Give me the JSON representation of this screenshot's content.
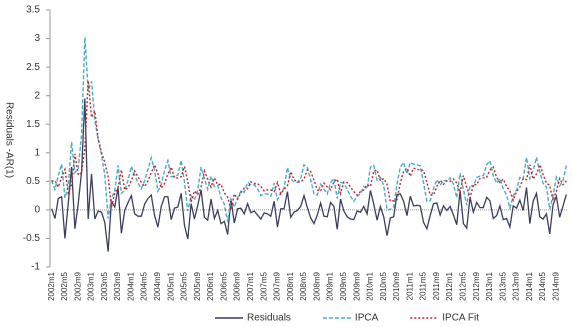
{
  "chart_data": {
    "type": "line",
    "y_label": "Residuals -AR(1)",
    "ylim": [
      -1,
      3.5
    ],
    "yticks": [
      -1,
      -0.5,
      0,
      0.5,
      1,
      1.5,
      2,
      2.5,
      3,
      3.5
    ],
    "legend": "bottom",
    "categories": [
      "2002m1",
      null,
      null,
      null,
      "2002m5",
      null,
      null,
      null,
      "2002m9",
      null,
      null,
      null,
      "2003m1",
      null,
      null,
      null,
      "2003m5",
      null,
      null,
      null,
      "2003m9",
      null,
      null,
      null,
      "2004m1",
      null,
      null,
      null,
      "2004m5",
      null,
      null,
      null,
      "2004m9",
      null,
      null,
      null,
      "2005m1",
      null,
      null,
      null,
      "2005m5",
      null,
      null,
      null,
      "2005m9",
      null,
      null,
      null,
      "2006m1",
      null,
      null,
      null,
      "2006m5",
      null,
      null,
      null,
      "2006m9",
      null,
      null,
      null,
      "2007m1",
      null,
      null,
      null,
      "2007m5",
      null,
      null,
      null,
      "2007m9",
      null,
      null,
      null,
      "2008m1",
      null,
      null,
      null,
      "2008m5",
      null,
      null,
      null,
      "2008m9",
      null,
      null,
      null,
      "2009m1",
      null,
      null,
      null,
      "2009m5",
      null,
      null,
      null,
      "2009m9",
      null,
      null,
      null,
      "2010m1",
      null,
      null,
      null,
      "2010m5",
      null,
      null,
      null,
      "2010m9",
      null,
      null,
      null,
      "2011m1",
      null,
      null,
      null,
      "2011m5",
      null,
      null,
      null,
      "2011m9",
      null,
      null,
      null,
      "2012m1",
      null,
      null,
      null,
      "2012m5",
      null,
      null,
      null,
      "2012m9",
      null,
      null,
      null,
      "2013m1",
      null,
      null,
      null,
      "2013m5",
      null,
      null,
      null,
      "2013m9",
      null,
      null,
      null,
      "2014m1",
      null,
      null,
      null,
      "2014m5",
      null,
      null,
      null,
      "2014m9",
      null,
      null,
      null
    ],
    "series": [
      {
        "name": "Residuals",
        "color": "#3b3f5e",
        "dash": "none",
        "values": [
          0.02,
          -0.15,
          0.2,
          0.23,
          -0.5,
          0.12,
          0.75,
          -0.33,
          0.11,
          0.66,
          1.95,
          -0.16,
          0.63,
          -0.16,
          -0.02,
          -0.04,
          -0.22,
          -0.73,
          0.15,
          0.05,
          0.39,
          -0.41,
          -0.01,
          0.13,
          0.25,
          -0.07,
          -0.11,
          -0.11,
          0.1,
          0.2,
          0.26,
          -0.1,
          -0.3,
          0.06,
          0.23,
          0.23,
          -0.17,
          0.03,
          0.05,
          0.29,
          -0.27,
          -0.51,
          0.11,
          -0.16,
          0.08,
          0.35,
          -0.13,
          -0.18,
          0.19,
          -0.15,
          -0.01,
          -0.24,
          -0.2,
          -0.43,
          0.19,
          -0.23,
          0.02,
          0.03,
          -0.07,
          0.11,
          -0.05,
          -0.02,
          -0.09,
          -0.16,
          -0.05,
          -0.07,
          -0.11,
          0.15,
          -0.3,
          0.02,
          0.02,
          0.32,
          -0.13,
          -0.04,
          -0.01,
          0.06,
          0.25,
          0.04,
          -0.14,
          -0.24,
          -0.09,
          0.12,
          -0.11,
          -0.12,
          0.13,
          0.06,
          -0.34,
          0.19,
          -0.02,
          -0.12,
          -0.16,
          -0.17,
          -0.02,
          -0.04,
          0.06,
          -0.07,
          0.34,
          0.1,
          -0.18,
          0.06,
          -0.12,
          -0.45,
          -0.14,
          -0.12,
          0.27,
          0.28,
          0.15,
          -0.1,
          0.24,
          0.07,
          0.08,
          0.07,
          -0.22,
          -0.33,
          -0.1,
          0.11,
          0.12,
          -0.09,
          0.07,
          -0.01,
          0.06,
          -0.09,
          -0.26,
          0.34,
          -0.24,
          -0.32,
          0.22,
          -0.04,
          0.13,
          0.04,
          0.04,
          0.22,
          0.16,
          -0.15,
          -0.1,
          0.07,
          -0.17,
          -0.15,
          -0.3,
          0.07,
          0.03,
          0.17,
          -0.01,
          0.39,
          -0.24,
          0.15,
          0.29,
          -0.12,
          -0.16,
          -0.07,
          -0.42,
          0.09,
          0.24,
          -0.13,
          0.07,
          0.27
        ]
      },
      {
        "name": "IPCA",
        "color": "#4bacc6",
        "dash": "4 2",
        "values": [
          0.52,
          0.36,
          0.6,
          0.8,
          0.21,
          0.42,
          1.19,
          0.65,
          0.72,
          1.31,
          3.02,
          2.1,
          2.25,
          1.57,
          1.23,
          0.97,
          0.61,
          -0.15,
          0.2,
          0.34,
          0.78,
          0.29,
          0.34,
          0.52,
          0.76,
          0.61,
          0.47,
          0.37,
          0.51,
          0.71,
          0.91,
          0.69,
          0.33,
          0.44,
          0.69,
          0.86,
          0.58,
          0.59,
          0.61,
          0.87,
          0.49,
          -0.02,
          0.25,
          0.17,
          0.35,
          0.75,
          0.55,
          0.36,
          0.59,
          0.41,
          0.43,
          0.21,
          0.1,
          -0.21,
          0.19,
          0.05,
          0.21,
          0.33,
          0.31,
          0.48,
          0.44,
          0.44,
          0.37,
          0.25,
          0.28,
          0.28,
          0.24,
          0.47,
          0.18,
          0.3,
          0.38,
          0.74,
          0.54,
          0.49,
          0.48,
          0.55,
          0.79,
          0.74,
          0.53,
          0.28,
          0.26,
          0.45,
          0.36,
          0.28,
          0.48,
          0.55,
          0.2,
          0.48,
          0.47,
          0.36,
          0.24,
          0.15,
          0.24,
          0.28,
          0.41,
          0.37,
          0.75,
          0.78,
          0.52,
          0.57,
          0.43,
          0.0,
          0.01,
          0.04,
          0.45,
          0.75,
          0.83,
          0.63,
          0.83,
          0.8,
          0.79,
          0.77,
          0.47,
          0.15,
          0.16,
          0.37,
          0.53,
          0.43,
          0.52,
          0.5,
          0.56,
          0.45,
          0.21,
          0.64,
          0.36,
          0.08,
          0.43,
          0.41,
          0.57,
          0.59,
          0.6,
          0.79,
          0.86,
          0.6,
          0.47,
          0.55,
          0.37,
          0.26,
          0.03,
          0.24,
          0.35,
          0.57,
          0.54,
          0.92,
          0.55,
          0.69,
          0.92,
          0.67,
          0.46,
          0.4,
          0.01,
          0.25,
          0.57,
          0.42,
          0.51,
          0.78
        ]
      },
      {
        "name": "IPCA Fit",
        "color": "#c0272d",
        "dash": "2 2",
        "values": [
          0.5,
          0.51,
          0.4,
          0.57,
          0.71,
          0.3,
          0.44,
          0.98,
          0.61,
          0.65,
          1.07,
          2.26,
          1.62,
          1.73,
          1.25,
          1.01,
          0.83,
          0.58,
          0.05,
          0.29,
          0.39,
          0.7,
          0.35,
          0.39,
          0.51,
          0.68,
          0.58,
          0.48,
          0.41,
          0.51,
          0.65,
          0.79,
          0.63,
          0.38,
          0.46,
          0.63,
          0.75,
          0.56,
          0.56,
          0.58,
          0.76,
          0.49,
          0.14,
          0.33,
          0.27,
          0.4,
          0.68,
          0.54,
          0.4,
          0.56,
          0.44,
          0.45,
          0.3,
          0.22,
          0.0,
          0.28,
          0.19,
          0.3,
          0.38,
          0.37,
          0.49,
          0.46,
          0.46,
          0.41,
          0.33,
          0.35,
          0.35,
          0.32,
          0.48,
          0.28,
          0.36,
          0.42,
          0.67,
          0.53,
          0.49,
          0.49,
          0.54,
          0.7,
          0.67,
          0.52,
          0.35,
          0.33,
          0.47,
          0.4,
          0.35,
          0.49,
          0.54,
          0.29,
          0.49,
          0.48,
          0.4,
          0.32,
          0.26,
          0.32,
          0.35,
          0.44,
          0.41,
          0.68,
          0.7,
          0.51,
          0.55,
          0.45,
          0.15,
          0.16,
          0.18,
          0.47,
          0.68,
          0.73,
          0.59,
          0.73,
          0.71,
          0.7,
          0.69,
          0.48,
          0.26,
          0.26,
          0.41,
          0.52,
          0.45,
          0.51,
          0.5,
          0.54,
          0.47,
          0.3,
          0.6,
          0.4,
          0.21,
          0.45,
          0.44,
          0.55,
          0.56,
          0.57,
          0.7,
          0.75,
          0.57,
          0.48,
          0.54,
          0.41,
          0.33,
          0.17,
          0.32,
          0.4,
          0.55,
          0.53,
          0.79,
          0.54,
          0.63,
          0.79,
          0.62,
          0.47,
          0.43,
          0.16,
          0.33,
          0.55,
          0.44,
          0.51
        ]
      }
    ]
  }
}
